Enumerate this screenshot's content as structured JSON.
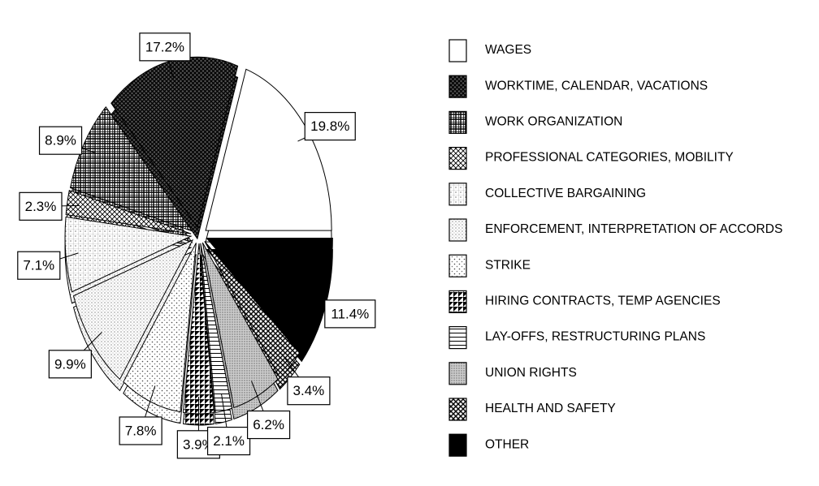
{
  "chart_data": {
    "type": "pie",
    "categories": [
      "WAGES",
      "WORKTIME, CALENDAR, VACATIONS",
      "WORK ORGANIZATION",
      "PROFESSIONAL CATEGORIES, MOBILITY",
      "COLLECTIVE BARGAINING",
      "ENFORCEMENT, INTERPRETATION OF ACCORDS",
      "STRIKE",
      "HIRING CONTRACTS, TEMP AGENCIES",
      "LAY-OFFS, RESTRUCTURING PLANS",
      "UNION RIGHTS",
      "HEALTH AND SAFETY",
      "OTHER"
    ],
    "values": [
      19.8,
      17.2,
      8.9,
      2.3,
      7.1,
      9.9,
      7.8,
      3.9,
      2.1,
      6.2,
      3.4,
      11.4
    ],
    "value_labels": [
      "19.8%",
      "17.2%",
      "8.9%",
      "2.3%",
      "7.1%",
      "9.9%",
      "7.8%",
      "3.9%",
      "2.1%",
      "6.2%",
      "3.4%",
      "11.4%"
    ]
  }
}
